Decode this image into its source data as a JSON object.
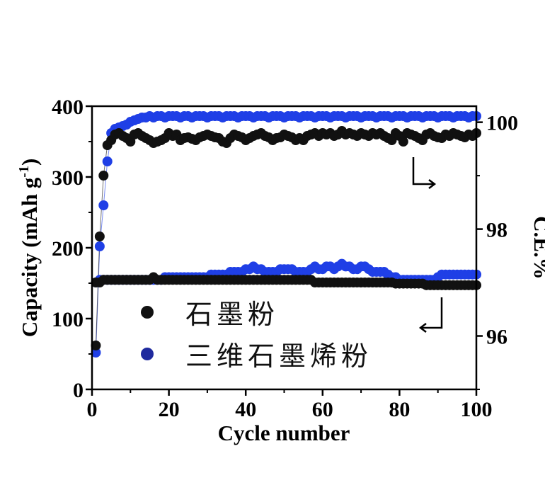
{
  "chart_data": {
    "type": "scatter",
    "xlabel": "Cycle number",
    "ylabel_left": "Capacity (mAh g",
    "ylabel_left_sup": "-1",
    "ylabel_left_close": ")",
    "ylabel_right": "C.E.%",
    "xlim": [
      0,
      100
    ],
    "ylim_left": [
      0,
      400
    ],
    "ylim_right": [
      95.0,
      100.3
    ],
    "x_ticks": [
      0,
      20,
      40,
      60,
      80,
      100
    ],
    "y_left_ticks": [
      0,
      100,
      200,
      300,
      400
    ],
    "y_right_ticks": [
      96,
      98,
      100
    ],
    "legend_position": "lower-left",
    "series": [
      {
        "name": "石墨粉",
        "color": "#111111",
        "capacity": [
          62,
          216,
          302,
          345,
          352,
          360,
          362,
          358,
          355,
          350,
          360,
          362,
          358,
          355,
          352,
          348,
          350,
          352,
          355,
          362,
          358,
          360,
          352,
          355,
          356,
          354,
          352,
          356,
          358,
          360,
          358,
          356,
          355,
          350,
          348,
          355,
          360,
          358,
          356,
          352,
          355,
          358,
          360,
          362,
          358,
          356,
          352,
          355,
          356,
          360,
          358,
          356,
          352,
          355,
          352,
          358,
          360,
          362,
          358,
          362,
          360,
          362,
          358,
          360,
          365,
          360,
          362,
          360,
          358,
          362,
          360,
          358,
          362,
          360,
          362,
          358,
          355,
          352,
          362,
          358,
          350,
          362,
          360,
          358,
          355,
          352,
          360,
          362,
          358,
          356,
          355,
          360,
          358,
          362,
          360,
          358,
          356,
          360,
          358,
          362
        ],
        "ce": [
          97.0,
          97.0,
          97.05,
          97.05,
          97.05,
          97.05,
          97.05,
          97.05,
          97.05,
          97.05,
          97.05,
          97.05,
          97.05,
          97.05,
          97.05,
          97.1,
          97.05,
          97.05,
          97.05,
          97.05,
          97.05,
          97.05,
          97.05,
          97.05,
          97.05,
          97.05,
          97.05,
          97.05,
          97.05,
          97.05,
          97.05,
          97.05,
          97.05,
          97.05,
          97.05,
          97.05,
          97.05,
          97.05,
          97.05,
          97.05,
          97.05,
          97.05,
          97.05,
          97.05,
          97.05,
          97.05,
          97.05,
          97.05,
          97.05,
          97.05,
          97.05,
          97.05,
          97.05,
          97.05,
          97.05,
          97.05,
          97.05,
          97.0,
          97.0,
          97.0,
          97.0,
          97.0,
          97.0,
          97.0,
          97.0,
          97.0,
          97.0,
          97.0,
          97.0,
          97.0,
          97.0,
          97.0,
          97.0,
          97.0,
          97.0,
          97.0,
          97.0,
          97.0,
          96.98,
          96.98,
          96.98,
          96.98,
          96.98,
          96.98,
          96.98,
          96.98,
          96.95,
          96.95,
          96.95,
          96.95,
          96.95,
          96.95,
          96.95,
          96.95,
          96.95,
          96.95,
          96.95,
          96.95,
          96.95,
          96.95
        ]
      },
      {
        "name": "三维石墨烯粉",
        "color": "#1f3fe6",
        "capacity": [
          52,
          202,
          260,
          322,
          362,
          368,
          370,
          372,
          374,
          378,
          380,
          382,
          384,
          384,
          386,
          384,
          386,
          386,
          384,
          386,
          386,
          386,
          384,
          386,
          386,
          384,
          386,
          386,
          386,
          384,
          386,
          386,
          386,
          384,
          386,
          386,
          386,
          384,
          386,
          386,
          386,
          384,
          386,
          386,
          386,
          384,
          386,
          386,
          386,
          384,
          386,
          386,
          386,
          384,
          386,
          386,
          386,
          384,
          386,
          386,
          386,
          384,
          386,
          386,
          386,
          384,
          386,
          386,
          386,
          384,
          386,
          386,
          386,
          384,
          386,
          386,
          386,
          384,
          386,
          386,
          386,
          384,
          386,
          386,
          386,
          384,
          386,
          386,
          386,
          384,
          386,
          386,
          386,
          384,
          386,
          386,
          386,
          384,
          386,
          386
        ],
        "ce": [
          97.0,
          97.05,
          97.05,
          97.05,
          97.05,
          97.05,
          97.05,
          97.05,
          97.05,
          97.05,
          97.05,
          97.05,
          97.05,
          97.05,
          97.05,
          97.05,
          97.05,
          97.05,
          97.1,
          97.1,
          97.1,
          97.1,
          97.1,
          97.1,
          97.1,
          97.1,
          97.1,
          97.1,
          97.1,
          97.1,
          97.15,
          97.15,
          97.15,
          97.15,
          97.15,
          97.2,
          97.2,
          97.2,
          97.2,
          97.25,
          97.25,
          97.3,
          97.25,
          97.25,
          97.2,
          97.2,
          97.2,
          97.2,
          97.25,
          97.25,
          97.25,
          97.25,
          97.2,
          97.2,
          97.2,
          97.2,
          97.25,
          97.3,
          97.25,
          97.25,
          97.3,
          97.3,
          97.25,
          97.3,
          97.35,
          97.3,
          97.3,
          97.25,
          97.25,
          97.3,
          97.3,
          97.25,
          97.2,
          97.2,
          97.2,
          97.2,
          97.15,
          97.1,
          97.1,
          97.05,
          97.05,
          97.05,
          97.05,
          97.05,
          97.05,
          97.05,
          97.05,
          97.05,
          97.05,
          97.1,
          97.15,
          97.15,
          97.15,
          97.15,
          97.15,
          97.15,
          97.15,
          97.15,
          97.15,
          97.15
        ]
      }
    ]
  }
}
